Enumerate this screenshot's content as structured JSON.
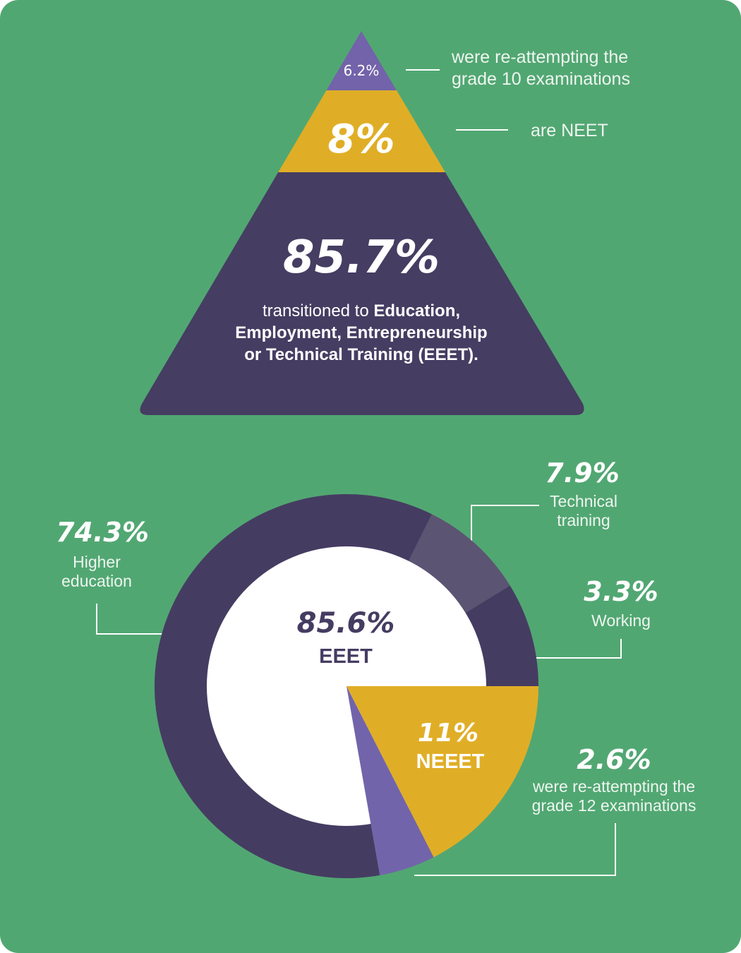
{
  "colors": {
    "background": "#51a772",
    "dark_purple": "#453c62",
    "light_purple": "#5c5473",
    "violet": "#7264aa",
    "yellow": "#e0ae26",
    "white": "#ffffff"
  },
  "chart_data": [
    {
      "type": "pyramid",
      "levels": [
        {
          "value": 6.2,
          "label": "6.2%",
          "description": "were re-attempting the grade 10 examinations",
          "color": "#7264aa"
        },
        {
          "value": 8,
          "label": "8%",
          "description": "are NEET",
          "color": "#e0ae26"
        },
        {
          "value": 85.7,
          "label": "85.7%",
          "description_plain": "transitioned to ",
          "description_bold_1": "Education,",
          "description_bold_2": "Employment, Entrepreneurship",
          "description_bold_3": "or Technical Training (EEET).",
          "color": "#453c62"
        }
      ]
    },
    {
      "type": "pie",
      "center": {
        "value": "85.6%",
        "label": "EEET"
      },
      "slices": [
        {
          "name": "Higher education",
          "value": 74.3,
          "label": "74.3%",
          "color": "#453c62"
        },
        {
          "name": "Technical training",
          "value": 7.9,
          "label": "7.9%",
          "color": "#5c5473"
        },
        {
          "name": "Working",
          "value": 3.3,
          "label": "3.3%",
          "color": "#453c62"
        },
        {
          "name": "NEEET",
          "value": 11,
          "label": "11%",
          "color": "#e0ae26"
        },
        {
          "name": "were re-attempting the grade 12 examinations",
          "value": 2.6,
          "label": "2.6%",
          "color": "#7264aa"
        }
      ]
    }
  ],
  "annotations": {
    "pyr_top_line1": "were re-attempting the",
    "pyr_top_line2": "grade 10 examinations",
    "neet": "are NEET",
    "higher_1": "Higher",
    "higher_2": "education",
    "tech_1": "Technical",
    "tech_2": "training",
    "working": "Working",
    "g12_1": "were re-attempting the",
    "g12_2": "grade 12 examinations"
  }
}
